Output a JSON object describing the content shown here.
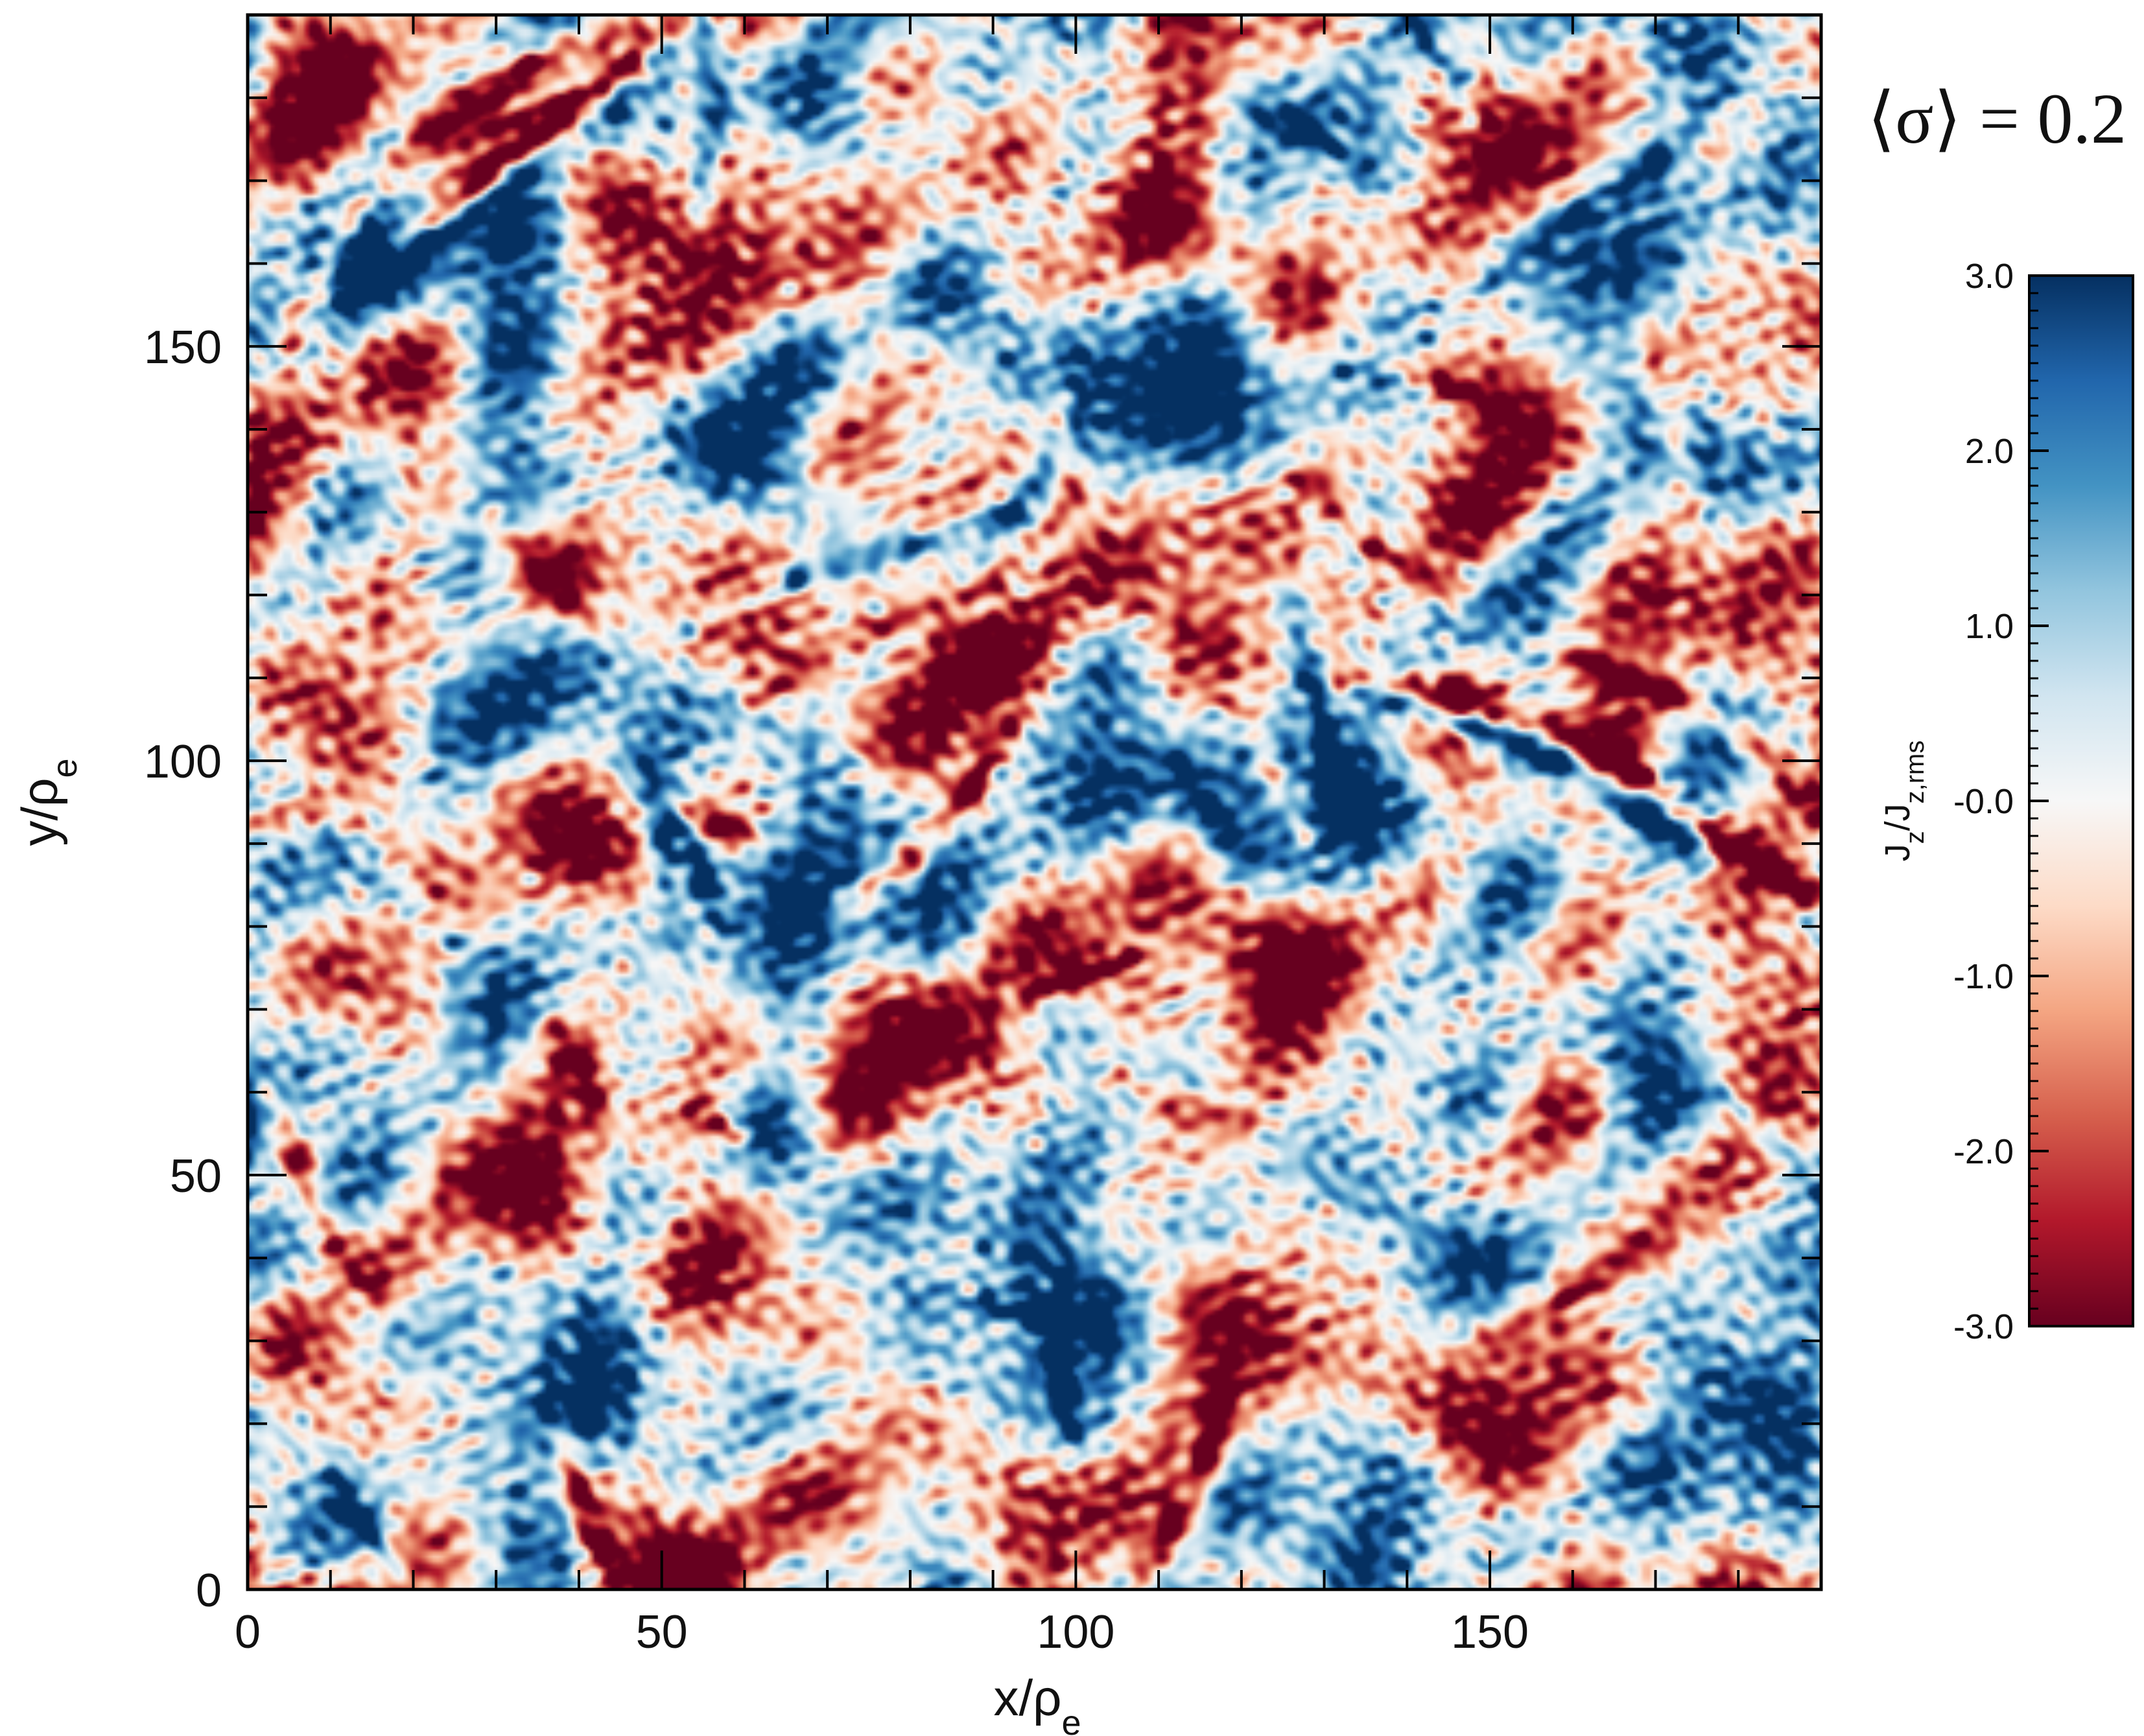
{
  "chart_data": {
    "type": "heatmap",
    "annotation": "⟨σ⟩ = 0.2",
    "xlabel": "x/ρ",
    "xlabel_sub": "e",
    "ylabel": "y/ρ",
    "ylabel_sub": "e",
    "xlim": [
      0,
      190
    ],
    "ylim": [
      0,
      190
    ],
    "x_ticks": [
      0,
      50,
      100,
      150
    ],
    "x_tick_labels": [
      "0",
      "50",
      "100",
      "150"
    ],
    "y_ticks": [
      0,
      50,
      100,
      150
    ],
    "y_tick_labels": [
      "0",
      "50",
      "100",
      "150"
    ],
    "minor_tick_step": 10,
    "colorbar": {
      "label_main": "J",
      "label_sub1": "z",
      "label_mid": "/J",
      "label_sub2": "z,rms",
      "range": [
        -3.0,
        3.0
      ],
      "ticks": [
        3.0,
        2.0,
        1.0,
        0.0,
        -1.0,
        -2.0,
        -3.0
      ],
      "tick_labels": [
        "3.0",
        "2.0",
        "1.0",
        "-0.0",
        "-1.0",
        "-2.0",
        "-3.0"
      ],
      "minor_tick_step": 0.1,
      "colormap": "RdBu (red negative, blue positive)",
      "color_stops": [
        "#67001f",
        "#b2182b",
        "#d6604d",
        "#f4a582",
        "#fddbc7",
        "#f7f7f7",
        "#d1e5f0",
        "#92c5de",
        "#4393c3",
        "#2166ac",
        "#053061"
      ]
    },
    "field_description": "turbulent current density field",
    "structures": [
      {
        "sign": -1,
        "amp": 2.4,
        "pts": [
          [
            5,
            150
          ],
          [
            12,
            165
          ],
          [
            22,
            176
          ],
          [
            34,
            184
          ],
          [
            46,
            189
          ]
        ]
      },
      {
        "sign": -1,
        "amp": 2.6,
        "pts": [
          [
            18,
            162
          ],
          [
            28,
            170
          ],
          [
            38,
            178
          ],
          [
            46,
            184
          ],
          [
            52,
            190
          ]
        ]
      },
      {
        "sign": 1,
        "amp": 1.8,
        "pts": [
          [
            12,
            155
          ],
          [
            22,
            163
          ],
          [
            34,
            171
          ],
          [
            44,
            178
          ],
          [
            50,
            186
          ]
        ]
      },
      {
        "sign": 1,
        "amp": 2.0,
        "pts": [
          [
            55,
            190
          ],
          [
            57,
            178
          ],
          [
            54,
            166
          ]
        ]
      },
      {
        "sign": 1,
        "amp": 2.2,
        "pts": [
          [
            52,
            116
          ],
          [
            66,
            122
          ],
          [
            80,
            126
          ],
          [
            92,
            130
          ],
          [
            100,
            140
          ]
        ]
      },
      {
        "sign": -1,
        "amp": 1.8,
        "pts": [
          [
            62,
            108
          ],
          [
            76,
            116
          ],
          [
            90,
            122
          ],
          [
            100,
            132
          ],
          [
            96,
            150
          ]
        ]
      },
      {
        "sign": -1,
        "amp": 2.8,
        "pts": [
          [
            72,
            82
          ],
          [
            80,
            88
          ],
          [
            87,
            96
          ],
          [
            92,
            104
          ]
        ]
      },
      {
        "sign": -1,
        "amp": 2.6,
        "pts": [
          [
            54,
            94
          ],
          [
            57,
            92
          ],
          [
            60,
            91
          ]
        ]
      },
      {
        "sign": 1,
        "amp": 2.6,
        "pts": [
          [
            136,
            108
          ],
          [
            148,
            104
          ],
          [
            158,
            100
          ],
          [
            168,
            94
          ],
          [
            176,
            88
          ]
        ]
      },
      {
        "sign": -1,
        "amp": 2.6,
        "pts": [
          [
            132,
            110
          ],
          [
            146,
            108
          ],
          [
            158,
            104
          ],
          [
            168,
            98
          ],
          [
            178,
            90
          ],
          [
            190,
            84
          ]
        ]
      },
      {
        "sign": -1,
        "amp": 2.4,
        "pts": [
          [
            160,
            112
          ],
          [
            172,
            108
          ],
          [
            182,
            102
          ],
          [
            190,
            94
          ]
        ]
      },
      {
        "sign": -1,
        "amp": 2.3,
        "pts": [
          [
            128,
            134
          ],
          [
            136,
            126
          ],
          [
            146,
            120
          ]
        ]
      },
      {
        "sign": 1,
        "amp": 2.2,
        "pts": [
          [
            126,
            120
          ],
          [
            128,
            110
          ],
          [
            132,
            98
          ],
          [
            134,
            92
          ]
        ]
      },
      {
        "sign": -1,
        "amp": 1.8,
        "pts": [
          [
            120,
            106
          ],
          [
            124,
            98
          ],
          [
            128,
            90
          ]
        ]
      },
      {
        "sign": -1,
        "amp": 2.3,
        "pts": [
          [
            95,
            72
          ],
          [
            100,
            74
          ],
          [
            106,
            76
          ]
        ]
      },
      {
        "sign": -1,
        "amp": 1.6,
        "pts": [
          [
            104,
            62
          ],
          [
            112,
            58
          ],
          [
            120,
            56
          ]
        ]
      },
      {
        "sign": 1,
        "amp": 2.4,
        "pts": [
          [
            52,
            92
          ],
          [
            55,
            86
          ],
          [
            57,
            80
          ]
        ]
      },
      {
        "sign": 1,
        "amp": 1.8,
        "pts": [
          [
            48,
            100
          ],
          [
            50,
            90
          ],
          [
            52,
            78
          ]
        ]
      },
      {
        "sign": -1,
        "amp": 2.2,
        "pts": [
          [
            54,
            58
          ],
          [
            57,
            56
          ],
          [
            60,
            54
          ]
        ]
      },
      {
        "sign": -1,
        "amp": 2.0,
        "pts": [
          [
            36,
            68
          ],
          [
            40,
            64
          ],
          [
            42,
            58
          ]
        ]
      },
      {
        "sign": -1,
        "amp": 2.6,
        "pts": [
          [
            38,
            18
          ],
          [
            40,
            12
          ],
          [
            42,
            6
          ],
          [
            44,
            2
          ]
        ]
      },
      {
        "sign": 1,
        "amp": 2.0,
        "pts": [
          [
            10,
            14
          ],
          [
            14,
            8
          ],
          [
            18,
            2
          ]
        ]
      },
      {
        "sign": -1,
        "amp": 2.0,
        "pts": [
          [
            2,
            60
          ],
          [
            6,
            52
          ],
          [
            10,
            42
          ],
          [
            16,
            36
          ]
        ]
      },
      {
        "sign": -1,
        "amp": 2.4,
        "pts": [
          [
            108,
            2
          ],
          [
            112,
            8
          ],
          [
            116,
            16
          ],
          [
            118,
            24
          ]
        ]
      },
      {
        "sign": 1,
        "amp": 2.2,
        "pts": [
          [
            96,
            34
          ],
          [
            98,
            26
          ],
          [
            100,
            18
          ]
        ]
      },
      {
        "sign": 1,
        "amp": 1.6,
        "pts": [
          [
            80,
            36
          ],
          [
            90,
            34
          ],
          [
            100,
            32
          ]
        ]
      },
      {
        "sign": -1,
        "amp": 1.8,
        "pts": [
          [
            136,
            150
          ],
          [
            144,
            146
          ],
          [
            152,
            142
          ]
        ]
      },
      {
        "sign": 1,
        "amp": 1.8,
        "pts": [
          [
            150,
            158
          ],
          [
            160,
            166
          ],
          [
            170,
            172
          ],
          [
            178,
            180
          ]
        ]
      },
      {
        "sign": 1,
        "amp": 2.0,
        "pts": [
          [
            140,
            190
          ],
          [
            146,
            182
          ],
          [
            148,
            176
          ]
        ]
      },
      {
        "sign": -1,
        "amp": 1.8,
        "pts": [
          [
            170,
            150
          ],
          [
            172,
            140
          ],
          [
            174,
            130
          ]
        ]
      },
      {
        "sign": 1,
        "amp": 1.8,
        "pts": [
          [
            112,
            100
          ],
          [
            116,
            94
          ],
          [
            120,
            88
          ]
        ]
      },
      {
        "sign": -1,
        "amp": 1.6,
        "pts": [
          [
            30,
            128
          ],
          [
            36,
            122
          ],
          [
            42,
            116
          ]
        ]
      },
      {
        "sign": 1,
        "amp": 1.6,
        "pts": [
          [
            10,
            90
          ],
          [
            18,
            84
          ],
          [
            26,
            78
          ]
        ]
      },
      {
        "sign": -1,
        "amp": 1.6,
        "pts": [
          [
            150,
            30
          ],
          [
            160,
            36
          ],
          [
            170,
            42
          ]
        ]
      },
      {
        "sign": 1,
        "amp": 1.6,
        "pts": [
          [
            178,
            60
          ],
          [
            184,
            54
          ],
          [
            190,
            48
          ]
        ]
      },
      {
        "sign": -1,
        "amp": 1.5,
        "pts": [
          [
            0,
            92
          ],
          [
            4,
            93
          ],
          [
            8,
            94
          ]
        ]
      },
      {
        "sign": -1,
        "amp": 1.8,
        "pts": [
          [
            184,
            86
          ],
          [
            188,
            84
          ],
          [
            190,
            83
          ]
        ]
      },
      {
        "sign": 1,
        "amp": 1.5,
        "pts": [
          [
            120,
            180
          ],
          [
            128,
            176
          ],
          [
            136,
            170
          ]
        ]
      }
    ]
  }
}
